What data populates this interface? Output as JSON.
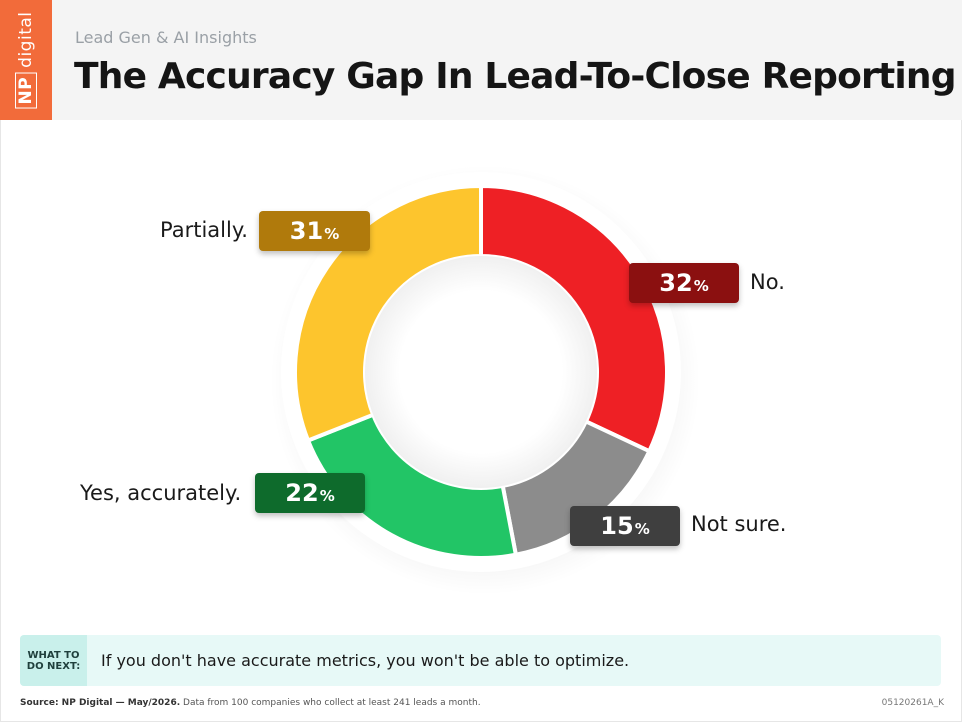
{
  "header": {
    "brand": {
      "np": "NP",
      "digital": "digital"
    },
    "subtitle": "Lead Gen & AI Insights",
    "title": "The Accuracy Gap In Lead-To-Close Reporting"
  },
  "chart_data": {
    "type": "pie",
    "donut": true,
    "slices": [
      {
        "label": "No.",
        "value": 32,
        "color": "#ee2025",
        "badge_color": "#8b1010"
      },
      {
        "label": "Not sure.",
        "value": 15,
        "color": "#8c8c8c",
        "badge_color": "#3f3f3f"
      },
      {
        "label": "Yes, accurately.",
        "value": 22,
        "color": "#22c566",
        "badge_color": "#0e6b2c"
      },
      {
        "label": "Partially.",
        "value": 31,
        "color": "#fdc52d",
        "badge_color": "#b07a0c"
      }
    ],
    "percent_symbol": "%"
  },
  "next": {
    "tag_line1": "WHAT TO",
    "tag_line2": "DO NEXT:",
    "text": "If you don't have accurate metrics, you won't be able to optimize."
  },
  "footer": {
    "source_label": "Source: NP Digital — May/2026.",
    "source_text": "Data from 100 companies who collect at least 241 leads a month.",
    "code": "05120261A_K"
  }
}
